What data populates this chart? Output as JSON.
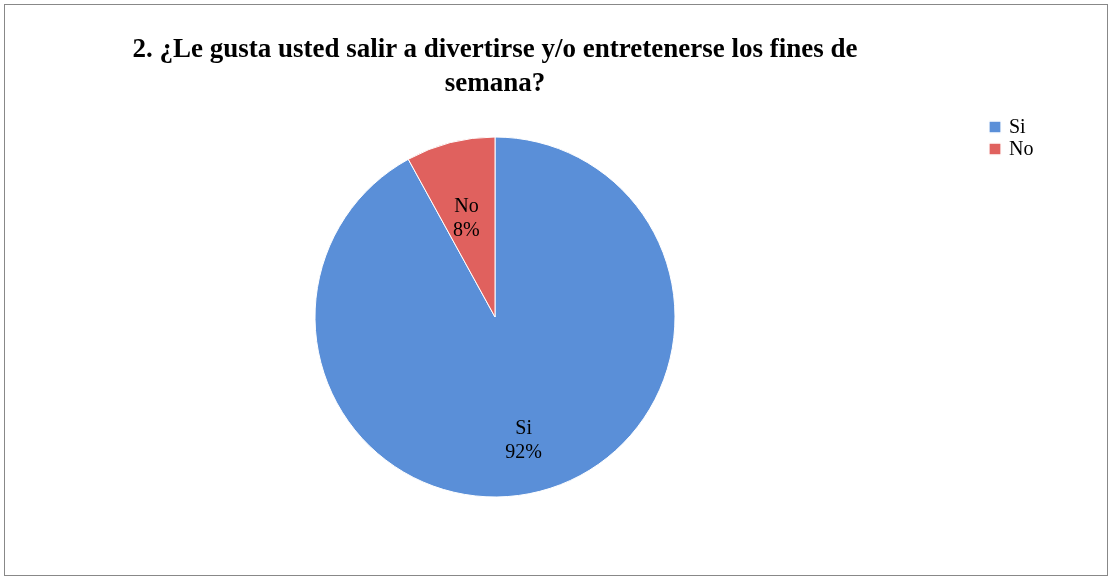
{
  "chart_data": {
    "type": "pie",
    "title": "2. ¿Le gusta usted salir a divertirse y/o entretenerse los fines de semana?",
    "categories": [
      "Si",
      "No"
    ],
    "values": [
      92,
      8
    ],
    "colors": [
      "#5a8fd8",
      "#e0615e"
    ],
    "value_labels": [
      "92%",
      "8%"
    ],
    "legend": "right"
  }
}
